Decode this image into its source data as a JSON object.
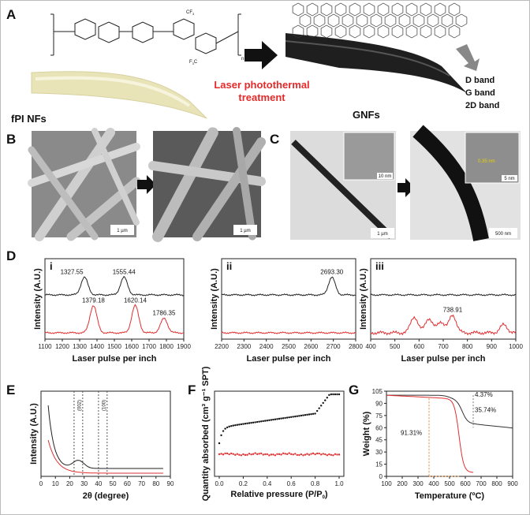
{
  "panel_labels": {
    "a": "A",
    "b": "B",
    "c": "C",
    "d": "D",
    "e": "E",
    "f": "F",
    "g": "G"
  },
  "panelA": {
    "left_label": "fPI NFs",
    "right_label": "GNFs",
    "arrow_text_1": "Laser photothermal",
    "arrow_text_2": "treatment",
    "bands": [
      "D band",
      "G band",
      "2D band"
    ],
    "chem": {
      "cf3_top": "CF",
      "cf3_top_sub": "3",
      "cf3_bot": "F",
      "cf3_bot_sub": "3",
      "cf3_bot_tail": "C",
      "n": "n"
    },
    "colors": {
      "arrow_text": "#e52a2a",
      "fpi": "#e6e0b0",
      "gnf": "#1c1c1c"
    }
  },
  "panelB": {
    "scale_left": "1 µm",
    "scale_right": "1 µm"
  },
  "panelC": {
    "scale_left": "1 µm",
    "scale_right": "500 nm",
    "inset_left": "10 nm",
    "inset_right": "5 nm",
    "lattice": "0.35 nm"
  },
  "chart_data": [
    {
      "id": "D-i",
      "type": "line",
      "roman": "i",
      "xlabel": "Laser pulse per inch",
      "ylabel": "Intensity (A.U.)",
      "xlim": [
        1100,
        1900
      ],
      "xticks": [
        1100,
        1200,
        1300,
        1400,
        1500,
        1600,
        1700,
        1800,
        1900
      ],
      "series": [
        {
          "color": "#222222",
          "peaks": [
            [
              1327.55,
              0.55
            ],
            [
              1555.44,
              0.55
            ]
          ]
        },
        {
          "color": "#e03030",
          "peaks": [
            [
              1379.18,
              0.85
            ],
            [
              1620.14,
              0.85
            ],
            [
              1786.35,
              0.45
            ]
          ]
        }
      ],
      "annotations": [
        {
          "x": 1327.55,
          "label": "1327.55"
        },
        {
          "x": 1555.44,
          "label": "1555.44"
        },
        {
          "x": 1379.18,
          "label": "1379.18"
        },
        {
          "x": 1620.14,
          "label": "1620.14"
        },
        {
          "x": 1786.35,
          "label": "1786.35"
        }
      ]
    },
    {
      "id": "D-ii",
      "type": "line",
      "roman": "ii",
      "xlabel": "Laser pulse per inch",
      "ylabel": "Intensity (A.U.)",
      "xlim": [
        2200,
        2800
      ],
      "xticks": [
        2200,
        2300,
        2400,
        2500,
        2600,
        2700,
        2800
      ],
      "series": [
        {
          "color": "#222222",
          "peaks": [
            [
              2693.3,
              0.55
            ]
          ]
        },
        {
          "color": "#e03030",
          "peaks": []
        }
      ],
      "annotations": [
        {
          "x": 2693.3,
          "label": "2693.30"
        }
      ]
    },
    {
      "id": "D-iii",
      "type": "line",
      "roman": "iii",
      "xlabel": "Laser pulse per inch",
      "ylabel": "Intensity (A.U.)",
      "xlim": [
        400,
        1000
      ],
      "xticks": [
        400,
        500,
        600,
        700,
        800,
        900,
        1000
      ],
      "series": [
        {
          "color": "#222222",
          "peaks": []
        },
        {
          "color": "#e03030",
          "peaks": [
            [
              580,
              0.5
            ],
            [
              640,
              0.45
            ],
            [
              690,
              0.35
            ],
            [
              738.91,
              0.55
            ],
            [
              950,
              0.25
            ]
          ]
        }
      ],
      "annotations": [
        {
          "x": 738.91,
          "label": "738.91"
        }
      ]
    },
    {
      "id": "E",
      "type": "line",
      "xlabel": "2θ (degree)",
      "ylabel": "Intensity (A.U.)",
      "xlim": [
        0,
        90
      ],
      "xticks": [
        0,
        10,
        20,
        30,
        40,
        50,
        60,
        70,
        80,
        90
      ],
      "reference_lines": [
        {
          "x": 26,
          "label": "(002)"
        },
        {
          "x": 43,
          "label": "(100)"
        }
      ]
    },
    {
      "id": "F",
      "type": "scatter",
      "xlabel": "Relative pressure (P/P",
      "xlabel_sub": "0",
      "xlabel_tail": ")",
      "ylabel": "Quantity absorbed (cm³ g⁻¹ SPT)",
      "xlim": [
        0.0,
        1.0
      ],
      "xticks": [
        "0.0",
        "0.2",
        "0.4",
        "0.6",
        "0.8",
        "1.0"
      ]
    },
    {
      "id": "G",
      "type": "line",
      "xlabel": "Temperature (ºC)",
      "ylabel": "Weight (%)",
      "xlim": [
        100,
        900
      ],
      "ylim": [
        0,
        105
      ],
      "xticks": [
        100,
        200,
        300,
        400,
        500,
        600,
        700,
        800,
        900
      ],
      "yticks": [
        0,
        15,
        30,
        45,
        60,
        75,
        90,
        105
      ],
      "annotations": [
        {
          "label": "4.37%"
        },
        {
          "label": "35.74%"
        },
        {
          "label": "91.31%"
        }
      ]
    }
  ]
}
